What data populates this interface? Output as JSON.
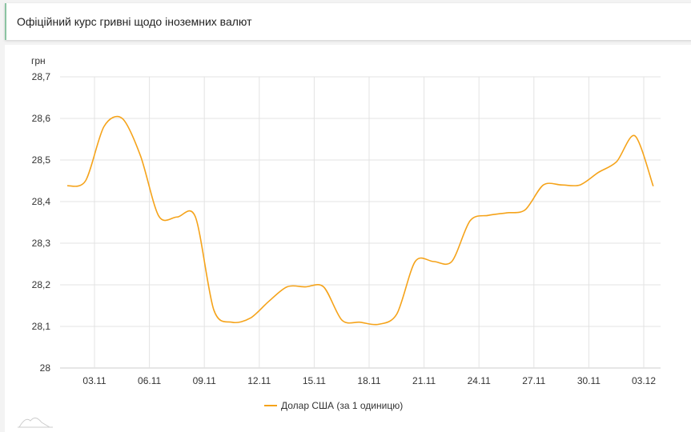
{
  "header": {
    "title": "Офіційний курс гривні щодо іноземних валют"
  },
  "chart_data": {
    "type": "line",
    "title": "",
    "ylabel": "грн",
    "xlabel": "",
    "ylim": [
      28,
      28.7
    ],
    "yticks": [
      "28",
      "28,1",
      "28,2",
      "28,3",
      "28,4",
      "28,5",
      "28,6",
      "28,7"
    ],
    "xticks": [
      "03.11",
      "06.11",
      "09.11",
      "12.11",
      "15.11",
      "18.11",
      "21.11",
      "24.11",
      "27.11",
      "30.11",
      "03.12"
    ],
    "grid": true,
    "legend": "bottom",
    "color": "#f5a31a",
    "series": [
      {
        "name": "Долар США (за 1 одиницю)",
        "x": [
          "01.11",
          "02.11",
          "03.11",
          "04.11",
          "05.11",
          "06.11",
          "07.11",
          "08.11",
          "09.11",
          "10.11",
          "11.11",
          "12.11",
          "13.11",
          "14.11",
          "15.11",
          "16.11",
          "17.11",
          "18.11",
          "19.11",
          "20.11",
          "21.11",
          "22.11",
          "23.11",
          "24.11",
          "25.11",
          "26.11",
          "27.11",
          "28.11",
          "29.11",
          "30.11",
          "01.12",
          "02.12",
          "03.12"
        ],
        "values": [
          28.438,
          28.45,
          28.58,
          28.6,
          28.51,
          28.365,
          28.363,
          28.363,
          28.14,
          28.11,
          28.12,
          28.16,
          28.195,
          28.195,
          28.195,
          28.115,
          28.11,
          28.105,
          28.13,
          28.256,
          28.256,
          28.256,
          28.354,
          28.367,
          28.373,
          28.38,
          28.44,
          28.44,
          28.44,
          28.47,
          28.496,
          28.558,
          28.437
        ]
      }
    ]
  }
}
